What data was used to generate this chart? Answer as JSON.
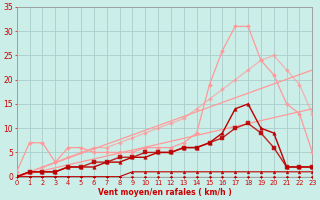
{
  "bg_color": "#cceee8",
  "grid_color": "#aacccc",
  "text_color": "#cc0000",
  "xlabel": "Vent moyen/en rafales ( km/h )",
  "xlim": [
    0,
    23
  ],
  "ylim": [
    0,
    35
  ],
  "yticks": [
    0,
    5,
    10,
    15,
    20,
    25,
    30,
    35
  ],
  "xticks": [
    0,
    1,
    2,
    3,
    4,
    5,
    6,
    7,
    8,
    9,
    10,
    11,
    12,
    13,
    14,
    15,
    16,
    17,
    18,
    19,
    20,
    21,
    22,
    23
  ],
  "lines": [
    {
      "x": [
        0,
        1,
        2,
        3,
        4,
        5,
        6,
        7,
        8,
        9,
        10,
        11,
        12,
        13,
        14,
        15,
        16,
        17,
        18,
        19,
        20,
        21,
        22,
        23
      ],
      "y": [
        0,
        0,
        0,
        0,
        0,
        0,
        0,
        0,
        0,
        0,
        0,
        0,
        0,
        0,
        0,
        0,
        0,
        0,
        0,
        0,
        0,
        0,
        0,
        0
      ],
      "color": "#bb0000",
      "lw": 0.8,
      "marker": "D",
      "ms": 1.5,
      "alpha": 1.0,
      "zorder": 5
    },
    {
      "x": [
        0,
        1,
        2,
        3,
        4,
        5,
        6,
        7,
        8,
        9,
        10,
        11,
        12,
        13,
        14,
        15,
        16,
        17,
        18,
        19,
        20,
        21,
        22,
        23
      ],
      "y": [
        0,
        0,
        0,
        0,
        0,
        0,
        0,
        0,
        0,
        1,
        1,
        1,
        1,
        1,
        1,
        1,
        1,
        1,
        1,
        1,
        1,
        1,
        1,
        1
      ],
      "color": "#bb0000",
      "lw": 0.8,
      "marker": "^",
      "ms": 2.0,
      "alpha": 1.0,
      "zorder": 5
    },
    {
      "x": [
        0,
        1,
        2,
        3,
        4,
        5,
        6,
        7,
        8,
        9,
        10,
        11,
        12,
        13,
        14,
        15,
        16,
        17,
        18,
        19,
        20,
        21,
        22,
        23
      ],
      "y": [
        0,
        1,
        1,
        1,
        2,
        2,
        2,
        3,
        3,
        4,
        4,
        5,
        5,
        6,
        6,
        7,
        9,
        14,
        15,
        10,
        9,
        2,
        2,
        2
      ],
      "color": "#bb0000",
      "lw": 1.0,
      "marker": "^",
      "ms": 2.5,
      "alpha": 1.0,
      "zorder": 5
    },
    {
      "x": [
        0,
        1,
        2,
        3,
        4,
        5,
        6,
        7,
        8,
        9,
        10,
        11,
        12,
        13,
        14,
        15,
        16,
        17,
        18,
        19,
        20,
        21,
        22,
        23
      ],
      "y": [
        0,
        1,
        1,
        1,
        2,
        2,
        3,
        3,
        4,
        4,
        5,
        5,
        5,
        6,
        6,
        7,
        8,
        10,
        11,
        9,
        6,
        2,
        2,
        2
      ],
      "color": "#bb0000",
      "lw": 1.0,
      "marker": "s",
      "ms": 2.5,
      "alpha": 0.85,
      "zorder": 4
    },
    {
      "x": [
        0,
        23
      ],
      "y": [
        0,
        22
      ],
      "color": "#ff9999",
      "lw": 0.9,
      "marker": "None",
      "ms": 0,
      "alpha": 1.0,
      "zorder": 2
    },
    {
      "x": [
        0,
        23
      ],
      "y": [
        0,
        14
      ],
      "color": "#ff9999",
      "lw": 0.9,
      "marker": "None",
      "ms": 0,
      "alpha": 1.0,
      "zorder": 2
    },
    {
      "x": [
        0,
        1,
        2,
        3,
        4,
        5,
        6,
        7,
        8,
        9,
        10,
        11,
        12,
        13,
        14,
        15,
        16,
        17,
        18,
        19,
        20,
        21,
        22,
        23
      ],
      "y": [
        1,
        7,
        7,
        3,
        6,
        6,
        5,
        5,
        5,
        5,
        6,
        6,
        6,
        7,
        9,
        19,
        26,
        31,
        31,
        24,
        21,
        15,
        13,
        5
      ],
      "color": "#ff9999",
      "lw": 0.9,
      "marker": "D",
      "ms": 2.0,
      "alpha": 1.0,
      "zorder": 3
    },
    {
      "x": [
        0,
        1,
        2,
        3,
        4,
        5,
        6,
        7,
        8,
        9,
        10,
        11,
        12,
        13,
        14,
        15,
        16,
        17,
        18,
        19,
        20,
        21,
        22,
        23
      ],
      "y": [
        0,
        1,
        2,
        3,
        4,
        5,
        6,
        6,
        7,
        8,
        9,
        10,
        11,
        12,
        14,
        16,
        18,
        20,
        22,
        24,
        25,
        22,
        19,
        13
      ],
      "color": "#ff9999",
      "lw": 0.9,
      "marker": "D",
      "ms": 2.0,
      "alpha": 0.7,
      "zorder": 3
    }
  ]
}
